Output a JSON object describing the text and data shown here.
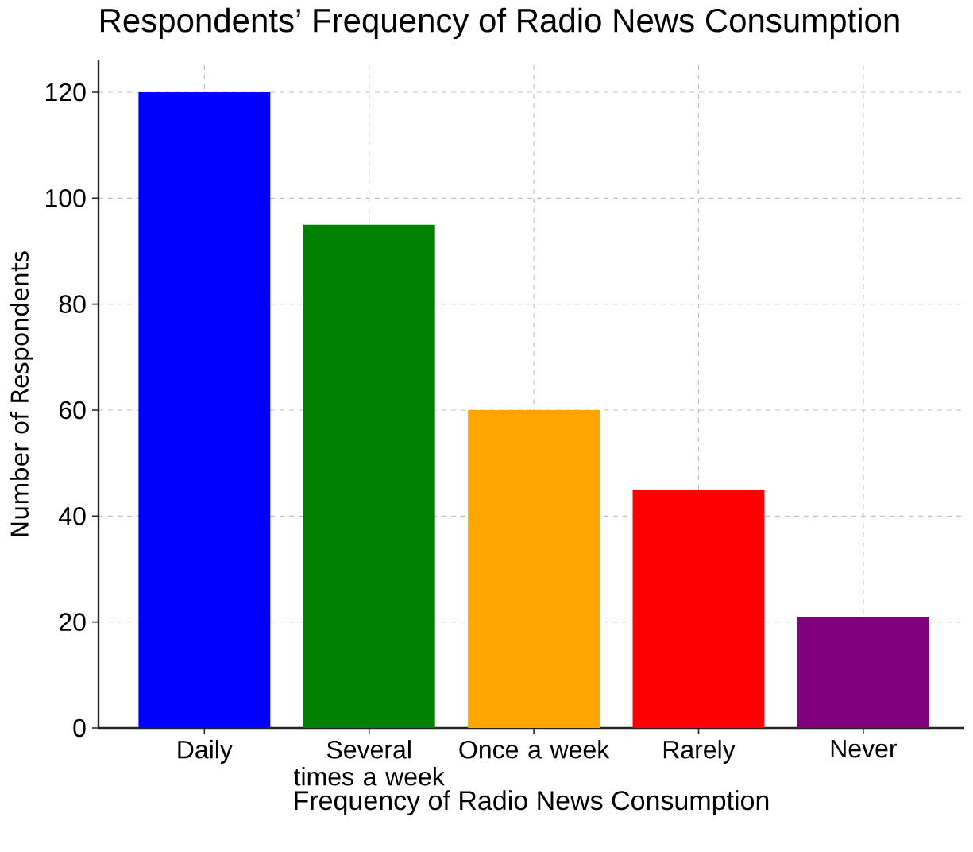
{
  "chart_data": {
    "type": "bar",
    "title": "Respondents’ Frequency of Radio News Consumption",
    "xlabel": "Frequency of Radio News Consumption",
    "ylabel": "Number of Respondents",
    "categories": [
      "Daily",
      "Several times a week",
      "Once a week",
      "Rarely",
      "Never"
    ],
    "values": [
      120,
      95,
      60,
      45,
      21
    ],
    "colors": [
      "#0000ff",
      "#008000",
      "#ffa500",
      "#ff0000",
      "#800080"
    ],
    "ylim": [
      0,
      126
    ],
    "yticks": [
      0,
      20,
      40,
      60,
      80,
      100,
      120
    ],
    "grid": true
  }
}
